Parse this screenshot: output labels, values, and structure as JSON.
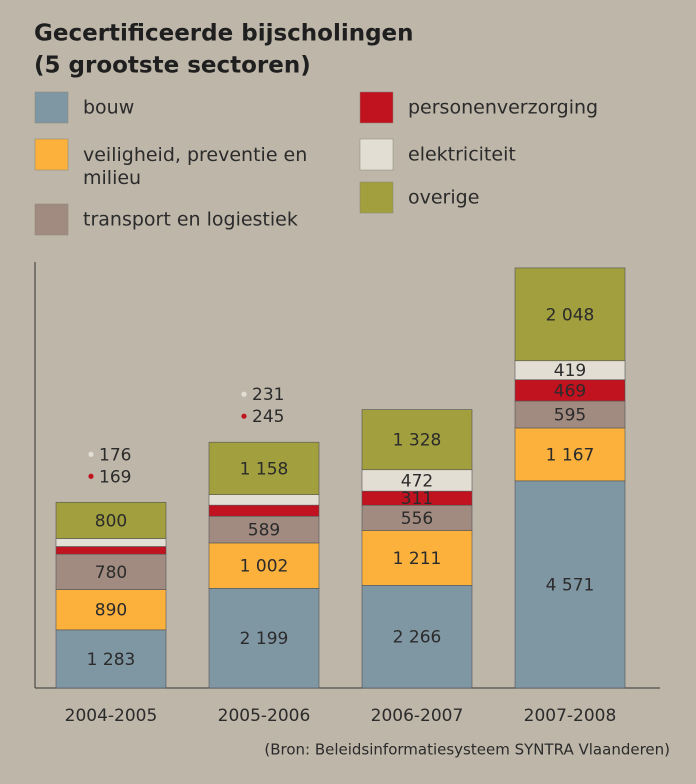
{
  "chart_data": {
    "type": "stacked_bar",
    "title": "Gecertificeerde bijscholingen",
    "subtitle": "(5 grootste sectoren)",
    "source": "(Bron: Beleidsinformatiesysteem SYNTRA Vlaanderen)",
    "categories": [
      "2004-2005",
      "2005-2006",
      "2006-2007",
      "2007-2008"
    ],
    "ylim": [
      0,
      9400
    ],
    "series": [
      {
        "name": "bouw",
        "color": "#7f96a3",
        "values": [
          1283,
          2199,
          2266,
          4571
        ],
        "value_labels": [
          "1 283",
          "2 199",
          "2 266",
          "4 571"
        ]
      },
      {
        "name": "veiligheid, preventie en milieu",
        "color": "#fbb13c",
        "values": [
          890,
          1002,
          1211,
          1167
        ],
        "value_labels": [
          "890",
          "1 002",
          "1 211",
          "1 167"
        ]
      },
      {
        "name": "transport en logiestiek",
        "color": "#a18b80",
        "values": [
          780,
          589,
          556,
          595
        ],
        "value_labels": [
          "780",
          "589",
          "556",
          "595"
        ]
      },
      {
        "name": "personenverzorging",
        "color": "#c1121f",
        "values": [
          169,
          245,
          311,
          469
        ],
        "value_labels": [
          "169",
          "245",
          "311",
          "469"
        ]
      },
      {
        "name": "elektriciteit",
        "color": "#e3ded3",
        "values": [
          176,
          231,
          472,
          419
        ],
        "value_labels": [
          "176",
          "231",
          "472",
          "419"
        ]
      },
      {
        "name": "overige",
        "color": "#a19f3e",
        "values": [
          800,
          1158,
          1328,
          2048
        ],
        "value_labels": [
          "800",
          "1 158",
          "1 328",
          "2 048"
        ]
      }
    ]
  }
}
